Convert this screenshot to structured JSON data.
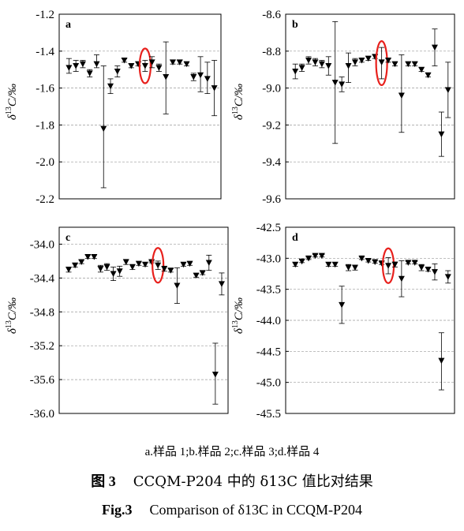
{
  "chart_data": [
    {
      "type": "scatter",
      "panel_label": "a",
      "ylabel": "δ13C/‰",
      "ylim": [
        -2.2,
        -1.2
      ],
      "yticks": [
        -1.2,
        -1.4,
        -1.6,
        -1.8,
        -2.0,
        -2.2
      ],
      "ytick_labels": [
        "-1.2",
        "-1.4",
        "-1.6",
        "-1.8",
        "-2.0",
        "-2.2"
      ],
      "grid": true,
      "highlight_index": 11,
      "series": [
        {
          "values": [
            -1.49,
            -1.48,
            -1.47,
            -1.52,
            -1.47,
            -1.82,
            -1.59,
            -1.51,
            -1.45,
            -1.48,
            -1.47,
            -1.48,
            -1.46,
            -1.49,
            -1.54,
            -1.46,
            -1.46,
            -1.47,
            -1.54,
            -1.53,
            -1.55,
            -1.6
          ],
          "error_low": [
            -1.52,
            -1.51,
            -1.49,
            -1.54,
            -1.49,
            -2.14,
            -1.63,
            -1.54,
            -1.46,
            -1.49,
            -1.48,
            -1.51,
            -1.49,
            -1.51,
            -1.74,
            -1.47,
            -1.47,
            -1.48,
            -1.56,
            -1.62,
            -1.63,
            -1.75
          ],
          "error_high": [
            -1.44,
            -1.45,
            -1.45,
            -1.5,
            -1.42,
            -1.48,
            -1.55,
            -1.48,
            -1.44,
            -1.47,
            -1.46,
            -1.45,
            -1.43,
            -1.47,
            -1.35,
            -1.45,
            -1.45,
            -1.46,
            -1.52,
            -1.43,
            -1.46,
            -1.45
          ]
        }
      ]
    },
    {
      "type": "scatter",
      "panel_label": "b",
      "ylabel": "δ13C/‰",
      "ylim": [
        -9.6,
        -8.6
      ],
      "yticks": [
        -8.6,
        -8.8,
        -9.0,
        -9.2,
        -9.4,
        -9.6
      ],
      "ytick_labels": [
        "-8.6",
        "-8.8",
        "-9.0",
        "-9.2",
        "-9.4",
        "-9.6"
      ],
      "grid": true,
      "highlight_index": 13,
      "series": [
        {
          "values": [
            -8.91,
            -8.89,
            -8.85,
            -8.86,
            -8.87,
            -8.88,
            -8.97,
            -8.98,
            -8.88,
            -8.86,
            -8.85,
            -8.84,
            -8.83,
            -8.86,
            -8.85,
            -8.87,
            -9.04,
            -8.87,
            -8.87,
            -8.9,
            -8.93,
            -8.78,
            -9.25,
            -9.01
          ],
          "error_low": [
            -8.95,
            -8.91,
            -8.87,
            -8.88,
            -8.89,
            -8.93,
            -9.3,
            -9.02,
            -8.97,
            -8.88,
            -8.86,
            -8.85,
            -8.84,
            -8.95,
            -8.86,
            -8.88,
            -9.24,
            -8.88,
            -8.88,
            -8.91,
            -8.94,
            -8.88,
            -9.37,
            -9.16
          ],
          "error_high": [
            -8.87,
            -8.87,
            -8.83,
            -8.84,
            -8.85,
            -8.83,
            -8.64,
            -8.94,
            -8.81,
            -8.84,
            -8.84,
            -8.83,
            -8.82,
            -8.78,
            -8.84,
            -8.86,
            -8.82,
            -8.86,
            -8.86,
            -8.89,
            -8.92,
            -8.68,
            -9.13,
            -8.86
          ]
        }
      ]
    },
    {
      "type": "scatter",
      "panel_label": "c",
      "ylabel": "δ13C/‰",
      "ylim": [
        -36.0,
        -33.8
      ],
      "yticks": [
        -34.0,
        -34.4,
        -34.8,
        -35.2,
        -35.6,
        -36.0
      ],
      "ytick_labels": [
        "-34.0",
        "-34.4",
        "-34.8",
        "-35.2",
        "-35.6",
        "-36.0"
      ],
      "grid": true,
      "highlight_index": 14,
      "series": [
        {
          "values": [
            -34.3,
            -34.25,
            -34.21,
            -34.15,
            -34.15,
            -34.29,
            -34.27,
            -34.35,
            -34.32,
            -34.21,
            -34.27,
            -34.23,
            -34.24,
            -34.21,
            -34.25,
            -34.29,
            -34.31,
            -34.49,
            -34.24,
            -34.23,
            -34.37,
            -34.34,
            -34.22,
            -35.54,
            -34.47
          ],
          "error_low": [
            -34.33,
            -34.27,
            -34.23,
            -34.17,
            -34.17,
            -34.33,
            -34.31,
            -34.43,
            -34.38,
            -34.24,
            -34.3,
            -34.25,
            -34.26,
            -34.22,
            -34.3,
            -34.32,
            -34.33,
            -34.7,
            -34.26,
            -34.25,
            -34.39,
            -34.36,
            -34.31,
            -35.89,
            -34.6
          ],
          "error_high": [
            -34.27,
            -34.23,
            -34.19,
            -34.13,
            -34.13,
            -34.25,
            -34.23,
            -34.27,
            -34.26,
            -34.18,
            -34.24,
            -34.21,
            -34.22,
            -34.2,
            -34.2,
            -34.26,
            -34.29,
            -34.28,
            -34.22,
            -34.21,
            -34.35,
            -34.32,
            -34.13,
            -35.17,
            -34.34
          ]
        }
      ]
    },
    {
      "type": "scatter",
      "panel_label": "d",
      "ylabel": "δ13C/‰",
      "ylim": [
        -45.5,
        -42.5
      ],
      "yticks": [
        -42.5,
        -43.0,
        -43.5,
        -44.0,
        -44.5,
        -45.0,
        -45.5
      ],
      "ytick_labels": [
        "-42.5",
        "-43.0",
        "-43.5",
        "-44.0",
        "-44.5",
        "-45.0",
        "-45.5"
      ],
      "grid": true,
      "highlight_index": 14,
      "series": [
        {
          "values": [
            -43.1,
            -43.05,
            -43.0,
            -42.96,
            -42.96,
            -43.1,
            -43.1,
            -43.75,
            -43.15,
            -43.15,
            -43.0,
            -43.04,
            -43.06,
            -43.08,
            -43.12,
            -43.1,
            -43.33,
            -43.07,
            -43.07,
            -43.15,
            -43.18,
            -43.22,
            -44.65,
            -43.3
          ],
          "error_low": [
            -43.13,
            -43.07,
            -43.02,
            -42.98,
            -42.98,
            -43.13,
            -43.13,
            -44.05,
            -43.2,
            -43.19,
            -43.02,
            -43.06,
            -43.08,
            -43.1,
            -43.25,
            -43.14,
            -43.62,
            -43.09,
            -43.09,
            -43.2,
            -43.21,
            -43.35,
            -45.12,
            -43.4
          ],
          "error_high": [
            -43.07,
            -43.03,
            -42.98,
            -42.94,
            -42.94,
            -43.07,
            -43.07,
            -43.45,
            -43.1,
            -43.11,
            -42.98,
            -43.02,
            -43.04,
            -43.06,
            -42.99,
            -43.06,
            -43.04,
            -43.05,
            -43.05,
            -43.1,
            -43.15,
            -43.09,
            -44.2,
            -43.2
          ]
        }
      ]
    }
  ],
  "caption": {
    "subcaption": "a.样品 1;b.样品 2;c.样品 3;d.样品 4",
    "fig_label_cn": "图 3",
    "title_cn": "CCQM-P204 中的 δ13C 值比对结果",
    "fig_label_en": "Fig.3",
    "title_en": "Comparison of δ13C in CCQM-P204"
  },
  "colors": {
    "marker": "#000000",
    "highlight": "#e8201c",
    "grid": "#9a9a9a",
    "axis": "#000000"
  }
}
